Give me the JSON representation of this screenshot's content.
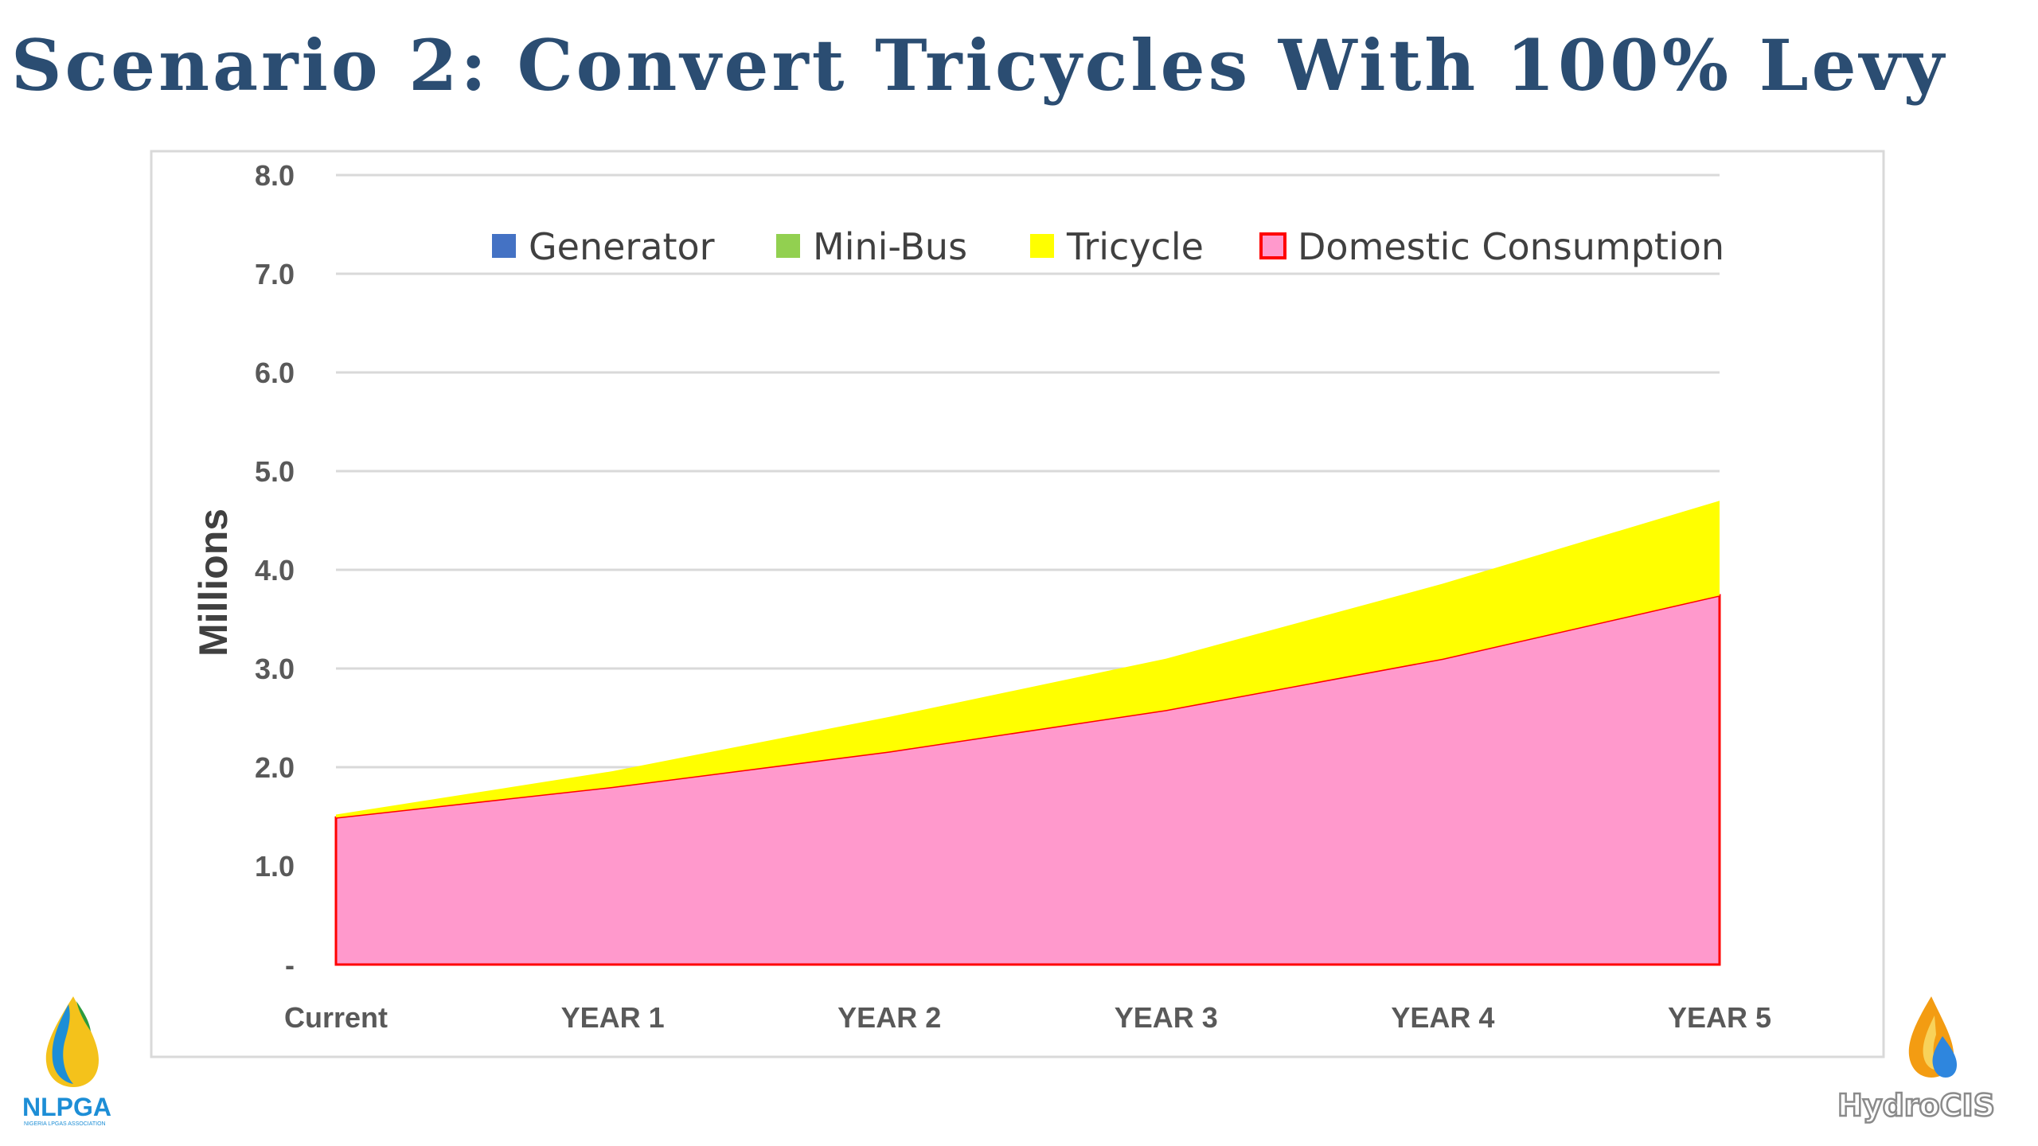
{
  "title": "Scenario 2: Convert Tricycles With 100% Levy",
  "chart_data": {
    "type": "area",
    "stacked": true,
    "categories": [
      "Current",
      "YEAR 1",
      "YEAR 2",
      "YEAR 3",
      "YEAR 4",
      "YEAR 5"
    ],
    "ylabel": "Millions",
    "ylim": [
      0,
      8
    ],
    "yticks": [
      0,
      1,
      2,
      3,
      4,
      5,
      6,
      7,
      8
    ],
    "ytick_labels": [
      "-",
      "1.0",
      "2.0",
      "3.0",
      "4.0",
      "5.0",
      "6.0",
      "7.0",
      "8.0"
    ],
    "grid": true,
    "legend_position": "top",
    "series": [
      {
        "name": "Generator",
        "color": "#4472c4",
        "values": [
          0,
          0,
          0,
          0,
          0,
          0
        ]
      },
      {
        "name": "Mini-Bus",
        "color": "#92d050",
        "values": [
          0,
          0,
          0,
          0,
          0,
          0
        ]
      },
      {
        "name": "Tricycle",
        "color": "#ffff00",
        "values": [
          0.03,
          0.16,
          0.35,
          0.52,
          0.76,
          0.96
        ]
      },
      {
        "name": "Domestic Consumption",
        "color": "#ff99cc",
        "edge": "#ff0000",
        "values": [
          1.49,
          1.8,
          2.16,
          2.58,
          3.1,
          3.74
        ]
      }
    ],
    "stack_order": [
      "Domestic Consumption",
      "Tricycle",
      "Mini-Bus",
      "Generator"
    ]
  },
  "logos": {
    "left": {
      "text": "NLPGA",
      "subtext": "NIGERIA LPGAS ASSOCIATION",
      "icon": "flame-drop-icon"
    },
    "right": {
      "text": "HydroCIS",
      "icon": "flame-water-drop-icon"
    }
  }
}
